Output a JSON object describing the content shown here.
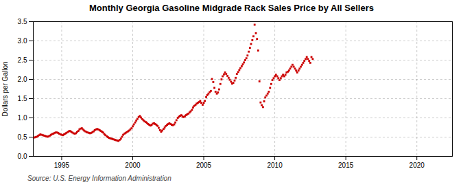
{
  "chart_data": {
    "type": "scatter",
    "title": "Monthly Georgia Gasoline Midgrade Rack Sales Price by All Sellers",
    "ylabel": "Dollars per Gallon",
    "source": "Source: U.S. Energy Information Administration",
    "color": "#cc0000",
    "marker": "square",
    "grid": true,
    "xlim": [
      1993.0,
      2022.5
    ],
    "ylim": [
      0.0,
      3.5
    ],
    "xticks": [
      1995,
      2000,
      2005,
      2010,
      2015,
      2020
    ],
    "yticks": [
      {
        "value": 0.0,
        "label": "0.0"
      },
      0.5,
      {
        "value": 1.0,
        "label": "1.0"
      },
      1.5,
      {
        "value": 2.0,
        "label": "2.0"
      },
      2.5,
      {
        "value": 3.0,
        "label": "3.0"
      },
      3.5
    ],
    "x": [
      1993.08,
      1993.17,
      1993.25,
      1993.33,
      1993.42,
      1993.5,
      1993.58,
      1993.67,
      1993.75,
      1993.83,
      1993.92,
      1994.0,
      1994.08,
      1994.17,
      1994.25,
      1994.33,
      1994.42,
      1994.5,
      1994.58,
      1994.67,
      1994.75,
      1994.83,
      1994.92,
      1995.0,
      1995.08,
      1995.17,
      1995.25,
      1995.33,
      1995.42,
      1995.5,
      1995.58,
      1995.67,
      1995.75,
      1995.83,
      1995.92,
      1996.0,
      1996.08,
      1996.17,
      1996.25,
      1996.33,
      1996.42,
      1996.5,
      1996.58,
      1996.67,
      1996.75,
      1996.83,
      1996.92,
      1997.0,
      1997.08,
      1997.17,
      1997.25,
      1997.33,
      1997.42,
      1997.5,
      1997.58,
      1997.67,
      1997.75,
      1997.83,
      1997.92,
      1998.0,
      1998.08,
      1998.17,
      1998.25,
      1998.33,
      1998.42,
      1998.5,
      1998.58,
      1998.67,
      1998.75,
      1998.83,
      1998.92,
      1999.0,
      1999.08,
      1999.17,
      1999.25,
      1999.33,
      1999.42,
      1999.5,
      1999.58,
      1999.67,
      1999.75,
      1999.83,
      1999.92,
      2000.0,
      2000.08,
      2000.17,
      2000.25,
      2000.33,
      2000.42,
      2000.5,
      2000.58,
      2000.67,
      2000.75,
      2000.83,
      2000.92,
      2001.0,
      2001.08,
      2001.17,
      2001.25,
      2001.33,
      2001.42,
      2001.5,
      2001.58,
      2001.67,
      2001.75,
      2001.83,
      2001.92,
      2002.0,
      2002.08,
      2002.17,
      2002.25,
      2002.33,
      2002.42,
      2002.5,
      2002.58,
      2002.67,
      2002.75,
      2002.83,
      2002.92,
      2003.0,
      2003.08,
      2003.17,
      2003.25,
      2003.33,
      2003.42,
      2003.5,
      2003.58,
      2003.67,
      2003.75,
      2003.83,
      2003.92,
      2004.0,
      2004.08,
      2004.17,
      2004.25,
      2004.33,
      2004.42,
      2004.5,
      2004.58,
      2004.67,
      2004.75,
      2004.83,
      2004.92,
      2005.0,
      2005.08,
      2005.17,
      2005.25,
      2005.33,
      2005.42,
      2005.5,
      2005.58,
      2005.67,
      2005.75,
      2005.83,
      2005.92,
      2006.0,
      2006.08,
      2006.17,
      2006.25,
      2006.33,
      2006.42,
      2006.5,
      2006.58,
      2006.67,
      2006.75,
      2006.83,
      2006.92,
      2007.0,
      2007.08,
      2007.17,
      2007.25,
      2007.33,
      2007.42,
      2007.5,
      2007.58,
      2007.67,
      2007.75,
      2007.83,
      2007.92,
      2008.0,
      2008.08,
      2008.17,
      2008.25,
      2008.33,
      2008.42,
      2008.5,
      2008.58,
      2008.67,
      2008.75,
      2008.83,
      2008.92,
      2009.0,
      2009.08,
      2009.17,
      2009.25,
      2009.33,
      2009.42,
      2009.5,
      2009.58,
      2009.67,
      2009.75,
      2009.83,
      2009.92,
      2010.0,
      2010.08,
      2010.17,
      2010.25,
      2010.33,
      2010.42,
      2010.5,
      2010.58,
      2010.67,
      2010.75,
      2010.83,
      2010.92,
      2011.0,
      2011.08,
      2011.17,
      2011.25,
      2011.33,
      2011.42,
      2011.5,
      2011.58,
      2011.67,
      2011.75,
      2011.83,
      2011.92,
      2012.0,
      2012.08,
      2012.17,
      2012.25,
      2012.33,
      2012.42,
      2012.5,
      2012.58,
      2012.67
    ],
    "values": [
      0.49,
      0.5,
      0.51,
      0.53,
      0.55,
      0.57,
      0.56,
      0.55,
      0.54,
      0.53,
      0.52,
      0.51,
      0.52,
      0.54,
      0.56,
      0.58,
      0.59,
      0.61,
      0.62,
      0.62,
      0.61,
      0.59,
      0.57,
      0.56,
      0.55,
      0.57,
      0.59,
      0.61,
      0.63,
      0.65,
      0.66,
      0.64,
      0.62,
      0.6,
      0.59,
      0.6,
      0.63,
      0.66,
      0.7,
      0.72,
      0.73,
      0.7,
      0.67,
      0.65,
      0.63,
      0.62,
      0.61,
      0.6,
      0.61,
      0.63,
      0.65,
      0.68,
      0.7,
      0.71,
      0.7,
      0.68,
      0.66,
      0.64,
      0.62,
      0.58,
      0.55,
      0.52,
      0.5,
      0.48,
      0.47,
      0.46,
      0.45,
      0.44,
      0.43,
      0.42,
      0.41,
      0.4,
      0.43,
      0.46,
      0.51,
      0.56,
      0.59,
      0.61,
      0.63,
      0.65,
      0.67,
      0.7,
      0.73,
      0.78,
      0.83,
      0.88,
      0.93,
      0.97,
      1.02,
      1.05,
      1.01,
      0.97,
      0.94,
      0.91,
      0.89,
      0.87,
      0.84,
      0.82,
      0.8,
      0.82,
      0.85,
      0.86,
      0.84,
      0.82,
      0.79,
      0.74,
      0.68,
      0.64,
      0.67,
      0.71,
      0.75,
      0.79,
      0.82,
      0.84,
      0.86,
      0.84,
      0.82,
      0.81,
      0.83,
      0.88,
      0.94,
      1.0,
      1.03,
      1.05,
      1.07,
      1.04,
      1.02,
      1.04,
      1.07,
      1.09,
      1.11,
      1.14,
      1.17,
      1.21,
      1.27,
      1.31,
      1.34,
      1.37,
      1.39,
      1.41,
      1.44,
      1.39,
      1.34,
      1.39,
      1.44,
      1.54,
      1.59,
      1.63,
      1.67,
      1.7,
      2.01,
      1.93,
      1.78,
      1.68,
      1.63,
      1.66,
      1.74,
      1.88,
      2.0,
      2.08,
      2.13,
      2.18,
      2.14,
      2.09,
      2.04,
      1.99,
      1.94,
      1.89,
      1.91,
      1.97,
      2.04,
      2.14,
      2.19,
      2.24,
      2.29,
      2.34,
      2.39,
      2.44,
      2.5,
      2.55,
      2.62,
      2.72,
      2.82,
      2.92,
      3.02,
      3.12,
      3.42,
      3.2,
      3.05,
      2.75,
      1.95,
      1.4,
      1.33,
      1.28,
      1.43,
      1.53,
      1.58,
      1.63,
      1.68,
      1.78,
      1.88,
      1.98,
      2.03,
      2.08,
      2.12,
      2.08,
      2.03,
      1.98,
      2.03,
      2.08,
      2.12,
      2.08,
      2.12,
      2.18,
      2.2,
      2.23,
      2.28,
      2.33,
      2.38,
      2.33,
      2.28,
      2.23,
      2.18,
      2.23,
      2.28,
      2.33,
      2.38,
      2.43,
      2.48,
      2.53,
      2.58,
      2.53,
      2.48,
      2.43,
      2.58,
      2.53
    ]
  }
}
